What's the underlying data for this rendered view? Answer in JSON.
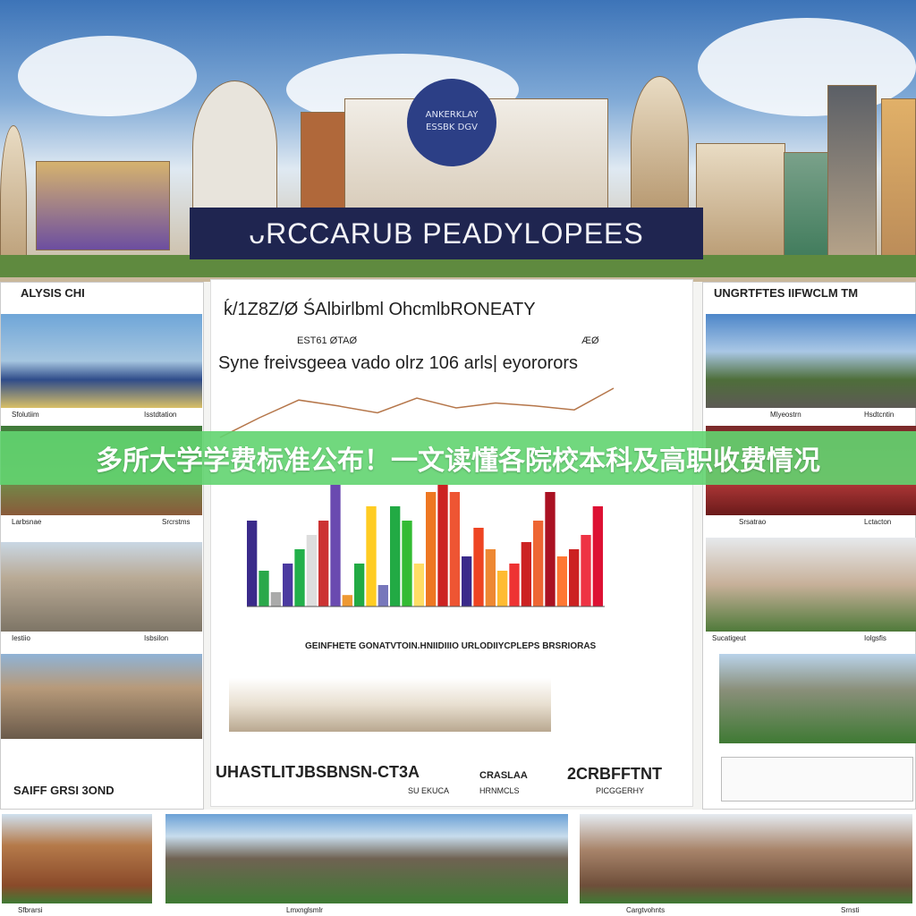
{
  "banner": {
    "title": "多所大学学费标准公布！一文读懂各院校本科及高职收费情况",
    "color": "#62d470"
  },
  "header": {
    "title": "ᴗRCCARUB PEADYLOPEES",
    "logo_text_1": "ANKERKLAY",
    "logo_text_2": "ESSBK DGV"
  },
  "left_column": {
    "top_label": "ALYSIS CHI",
    "captions": [
      "Sfolutiim",
      "Isstdtation",
      "Larbsnae",
      "Srcrstms",
      "Iestiio",
      "Isbsilon"
    ],
    "bottom_label": "SAIFF GRSI 3OND"
  },
  "right_column": {
    "top_label": "UNGRTFTES IIFWCLM TM",
    "captions": [
      "Mlyeostrn",
      "Hsdtcntin",
      "Srsatrao",
      "Lctacton",
      "Sucatigeut",
      "Iolgsfis"
    ]
  },
  "center": {
    "line1": "ḱ/1Z8Z/Ø ŚAlbirlbml OhcmlbRONEATY",
    "small1": "EST61 ØTAØ",
    "small2": "ÆØ",
    "line2": "Syne freivsgeea vado olrz 106 arls| eyororors",
    "chart_caption": "GEINFHETE GONATVTOIN.HNIIDIIIO URLODIIYCPLEPS BRSRIORAS",
    "footer_left": "UHASTLITJBSBNSN-CT3A",
    "footer_left_sub": "SU EKUCA",
    "footer_mid": "CRASLAA",
    "footer_mid_sub": "HRNMCLS",
    "footer_right": "2CRBFFTNT",
    "footer_right_sub": "PICGGERHY"
  },
  "chart_data": {
    "type": "bar",
    "values": [
      60,
      25,
      10,
      30,
      40,
      50,
      60,
      85,
      8,
      30,
      70,
      15,
      70,
      60,
      30,
      80,
      85,
      80,
      35,
      55,
      40,
      25,
      30,
      45,
      60,
      80,
      35,
      40,
      50,
      70
    ],
    "colors": [
      "#3a2a8a",
      "#2aa84a",
      "#aaaaaa",
      "#4b3aa0",
      "#22b04a",
      "#dddddd",
      "#cc3333",
      "#6a4ab0",
      "#ee9933",
      "#22aa44",
      "#ffcc22",
      "#7777bb",
      "#22aa44",
      "#33bb33",
      "#ffdd66",
      "#ee7722",
      "#cc2222",
      "#ee5533",
      "#3a2a8a",
      "#ee4422",
      "#ee8833",
      "#ffbb33",
      "#ee3333",
      "#cc2222",
      "#ee6633",
      "#aa1122",
      "#ff7733",
      "#cc2222",
      "#ee3344",
      "#dd1133"
    ],
    "line": [
      60,
      40,
      22,
      28,
      35,
      20,
      30,
      25,
      28,
      32,
      10
    ]
  },
  "bottom_row": {
    "captions": [
      "Sfbrarsi",
      "Lmxnglsmlr",
      "Cargtvohnts",
      "Srnsti"
    ]
  }
}
